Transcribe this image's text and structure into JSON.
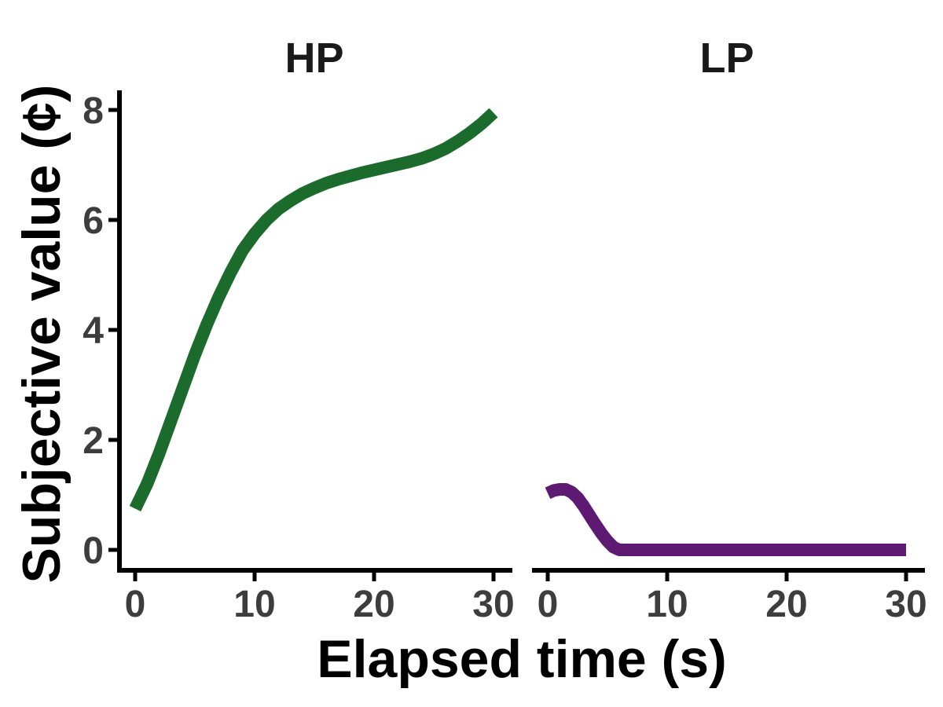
{
  "chart_data": [
    {
      "type": "line",
      "title": "HP",
      "xlabel": "Elapsed time (s)",
      "ylabel": "Subjective value (¢)",
      "xlim": [
        0,
        30
      ],
      "ylim": [
        0,
        8
      ],
      "x_ticks": [
        0,
        10,
        20,
        30
      ],
      "y_ticks": [
        0,
        2,
        4,
        6,
        8
      ],
      "grid": false,
      "series": [
        {
          "color": "#1b6b2c",
          "x": [
            0,
            1,
            2,
            3,
            4,
            5,
            6,
            7,
            8,
            9,
            10,
            11,
            12,
            13,
            14,
            15,
            16,
            17,
            18,
            19,
            20,
            21,
            22,
            23,
            24,
            25,
            26,
            27,
            28,
            29,
            30
          ],
          "y": [
            0.75,
            1.2,
            1.75,
            2.35,
            2.95,
            3.55,
            4.1,
            4.6,
            5.05,
            5.45,
            5.75,
            6.0,
            6.2,
            6.35,
            6.48,
            6.58,
            6.67,
            6.74,
            6.8,
            6.86,
            6.91,
            6.96,
            7.01,
            7.06,
            7.12,
            7.2,
            7.3,
            7.43,
            7.58,
            7.75,
            7.95
          ]
        }
      ]
    },
    {
      "type": "line",
      "title": "LP",
      "xlim": [
        0,
        30
      ],
      "ylim": [
        0,
        8
      ],
      "x_ticks": [
        0,
        10,
        20,
        30
      ],
      "grid": false,
      "series": [
        {
          "color": "#5e1a72",
          "x": [
            0,
            0.5,
            1,
            1.5,
            2,
            2.5,
            3,
            3.5,
            4,
            4.5,
            5,
            5.5,
            6,
            7,
            8,
            10,
            15,
            20,
            25,
            30
          ],
          "y": [
            1.03,
            1.08,
            1.1,
            1.1,
            1.05,
            0.95,
            0.8,
            0.63,
            0.46,
            0.3,
            0.16,
            0.05,
            0.0,
            0,
            0,
            0,
            0,
            0,
            0,
            0
          ]
        }
      ]
    }
  ]
}
